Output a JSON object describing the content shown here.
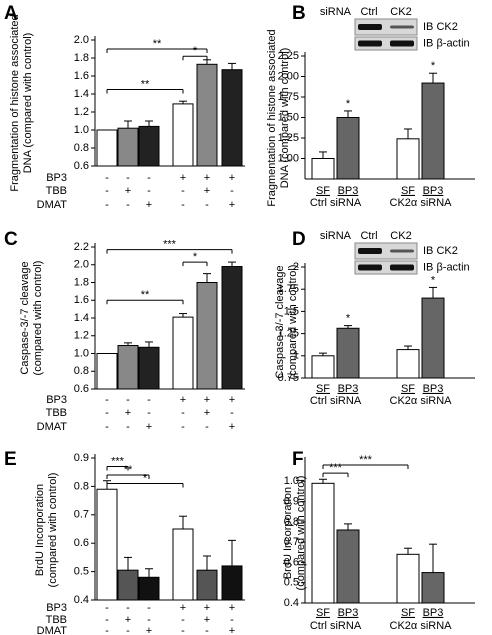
{
  "chart_data": [
    {
      "type": "bar",
      "panel": "A",
      "ylabel": [
        "Fragmentation of histone associated",
        "DNA (compared with control)"
      ],
      "ylim": [
        0.6,
        2.0
      ],
      "yticks": [
        0.6,
        0.8,
        {
          "value": 1.0,
          "label": "1.0"
        },
        1.2,
        1.4,
        1.6,
        1.8,
        {
          "value": 2.0,
          "label": "2.0"
        }
      ],
      "categories": [
        null,
        null,
        null,
        null,
        null,
        null
      ],
      "values": [
        1.0,
        1.02,
        1.04,
        1.29,
        1.73,
        1.67
      ],
      "errors": [
        0,
        0.08,
        0.06,
        0.03,
        0.05,
        0.07
      ],
      "colors": [
        "#ffffff",
        "#888888",
        "#222222",
        "#ffffff",
        "#888888",
        "#222222"
      ],
      "conditions": [
        {
          "name": "BP3",
          "marks": [
            "-",
            "-",
            "-",
            "+",
            "+",
            "+"
          ]
        },
        {
          "name": "TBB",
          "marks": [
            "-",
            "+",
            "-",
            "-",
            "+",
            "-"
          ]
        },
        {
          "name": "DMAT",
          "marks": [
            "-",
            "-",
            "+",
            "-",
            "-",
            "+"
          ]
        }
      ],
      "brackets": [
        {
          "label": "**",
          "bars": [
            0,
            3
          ],
          "y": 1.45
        },
        {
          "label": "*",
          "bars": [
            3,
            4
          ],
          "y": 1.82
        },
        {
          "label": "**",
          "bars": [
            0,
            4
          ],
          "y": 1.9
        }
      ]
    },
    {
      "type": "bar",
      "panel": "B",
      "ylabel": [
        "Fragmentation of histone associated",
        "DNA (compared with control)"
      ],
      "ylim": [
        0.75,
        2.25
      ],
      "yticks": [
        {
          "value": 1.0,
          "label": "1.00"
        },
        1.25,
        {
          "value": 1.5,
          "label": "1.50"
        },
        1.75,
        {
          "value": 2.0,
          "label": "2.00"
        },
        2.25
      ],
      "categories": [
        "SF",
        "BP3",
        "SF",
        "BP3"
      ],
      "groups": [
        "Ctrl siRNA",
        "CK2α siRNA"
      ],
      "values": [
        1.0,
        1.5,
        1.24,
        1.92
      ],
      "errors": [
        0.08,
        0.08,
        0.12,
        0.12
      ],
      "colors": [
        "#ffffff",
        "#666666",
        "#ffffff",
        "#666666"
      ],
      "annotations": [
        {
          "label": "*",
          "bar": 1
        },
        {
          "label": "*",
          "bar": 3
        }
      ],
      "blot": {
        "title": "siRNA",
        "lanes": [
          "Ctrl",
          "CK2"
        ],
        "rows": [
          "IB CK2",
          "IB β-actin"
        ]
      }
    },
    {
      "type": "bar",
      "panel": "C",
      "ylabel": [
        "Caspase-3/-7 cleavage",
        "(compared with control)"
      ],
      "ylim": [
        0.6,
        2.2
      ],
      "yticks": [
        0.6,
        0.8,
        {
          "value": 1.0,
          "label": "1.0"
        },
        1.2,
        1.4,
        1.6,
        1.8,
        {
          "value": 2.0,
          "label": "2.0"
        },
        2.2
      ],
      "categories": [
        null,
        null,
        null,
        null,
        null,
        null
      ],
      "values": [
        1.0,
        1.09,
        1.07,
        1.41,
        1.8,
        1.98
      ],
      "errors": [
        0,
        0.03,
        0.06,
        0.04,
        0.1,
        0.05
      ],
      "colors": [
        "#ffffff",
        "#888888",
        "#222222",
        "#ffffff",
        "#888888",
        "#222222"
      ],
      "conditions": [
        {
          "name": "BP3",
          "marks": [
            "-",
            "-",
            "-",
            "+",
            "+",
            "+"
          ]
        },
        {
          "name": "TBB",
          "marks": [
            "-",
            "+",
            "-",
            "-",
            "+",
            "-"
          ]
        },
        {
          "name": "DMAT",
          "marks": [
            "-",
            "-",
            "+",
            "-",
            "-",
            "+"
          ]
        }
      ],
      "brackets": [
        {
          "label": "**",
          "bars": [
            0,
            3
          ],
          "y": 1.6
        },
        {
          "label": "*",
          "bars": [
            3,
            4
          ],
          "y": 2.03
        },
        {
          "label": "***",
          "bars": [
            0,
            5
          ],
          "y": 2.17
        }
      ]
    },
    {
      "type": "bar",
      "panel": "D",
      "ylabel": [
        "Caspase-3/-7 cleavage",
        "(compared with control)"
      ],
      "ylim": [
        0.75,
        2.0
      ],
      "yticks": [
        0.75,
        1,
        1.25,
        1.5,
        1.75,
        2
      ],
      "categories": [
        "SF",
        "BP3",
        "SF",
        "BP3"
      ],
      "groups": [
        "Ctrl siRNA",
        "CK2α siRNA"
      ],
      "values": [
        1.0,
        1.31,
        1.07,
        1.65
      ],
      "errors": [
        0.03,
        0.03,
        0.04,
        0.12
      ],
      "colors": [
        "#ffffff",
        "#666666",
        "#ffffff",
        "#666666"
      ],
      "annotations": [
        {
          "label": "*",
          "bar": 1
        },
        {
          "label": "*",
          "bar": 3
        }
      ],
      "blot": {
        "title": "siRNA",
        "lanes": [
          "Ctrl",
          "CK2"
        ],
        "rows": [
          "IB CK2",
          "IB β-actin"
        ]
      }
    },
    {
      "type": "bar",
      "panel": "E",
      "ylabel": [
        "BrdU Incorporation",
        "(compared with control)"
      ],
      "ylim": [
        0.4,
        0.9
      ],
      "yticks": [
        0.4,
        0.5,
        0.6,
        0.7,
        0.8,
        0.9
      ],
      "categories": [
        null,
        null,
        null,
        null,
        null,
        null
      ],
      "values": [
        0.79,
        0.505,
        0.48,
        0.65,
        0.505,
        0.52
      ],
      "errors": [
        0.03,
        0.045,
        0.03,
        0.045,
        0.05,
        0.09
      ],
      "colors": [
        "#ffffff",
        "#555555",
        "#111111",
        "#ffffff",
        "#555555",
        "#111111"
      ],
      "conditions": [
        {
          "name": "BP3",
          "marks": [
            "-",
            "-",
            "-",
            "+",
            "+",
            "+"
          ]
        },
        {
          "name": "TBB",
          "marks": [
            "-",
            "+",
            "-",
            "-",
            "+",
            "-"
          ]
        },
        {
          "name": "DMAT",
          "marks": [
            "-",
            "-",
            "+",
            "-",
            "-",
            "+"
          ]
        }
      ],
      "brackets": [
        {
          "label": "***",
          "bars": [
            0,
            1
          ],
          "y": 0.87
        },
        {
          "label": "**",
          "bars": [
            0,
            2
          ],
          "y": 0.84
        },
        {
          "label": "*",
          "bars": [
            0,
            3
          ],
          "y": 0.81
        }
      ]
    },
    {
      "type": "bar",
      "panel": "F",
      "ylabel": [
        "BrdU Incorporation",
        "(compared with control)"
      ],
      "ylim": [
        0.4,
        1.1
      ],
      "yticks": [
        0.4,
        0.5,
        0.6,
        0.7,
        0.8,
        0.9,
        {
          "value": 1.0,
          "label": "1.0"
        }
      ],
      "categories": [
        "SF",
        "BP3",
        "SF",
        "BP3"
      ],
      "groups": [
        "Ctrl siRNA",
        "CK2α siRNA"
      ],
      "values": [
        0.99,
        0.76,
        0.64,
        0.55
      ],
      "errors": [
        0.02,
        0.03,
        0.03,
        0.14
      ],
      "colors": [
        "#ffffff",
        "#666666",
        "#ffffff",
        "#666666"
      ],
      "brackets": [
        {
          "label": "***",
          "bars": [
            0,
            2
          ],
          "y": 1.08
        },
        {
          "label": "***",
          "bars": [
            0,
            1
          ],
          "y": 1.04
        }
      ]
    }
  ]
}
